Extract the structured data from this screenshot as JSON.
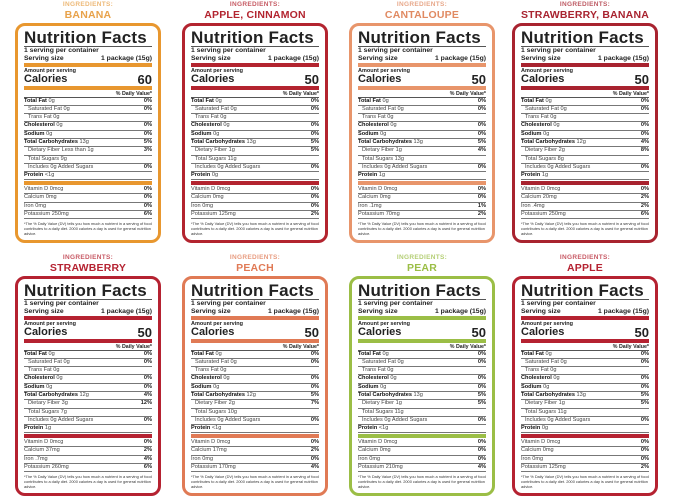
{
  "common": {
    "ingredients_label": "INGREDIENTS:",
    "title": "Nutrition Facts",
    "servings": "1 serving per container",
    "serving_size_label": "Serving size",
    "serving_size": "1 package (15g)",
    "amount_per_serving": "Amount per serving",
    "calories_label": "Calories",
    "dv_header": "% Daily Value*",
    "nutrient_names": [
      "Total Fat",
      "Saturated Fat",
      "Trans Fat",
      "Cholesterol",
      "Sodium",
      "Total Carbohydrates",
      "Dietary Fiber",
      "Total Sugars",
      "Includes 0g Added Sugars",
      "Protein"
    ],
    "vitamin_names": [
      "Vitamin D",
      "Calcium",
      "Iron",
      "Potassium"
    ],
    "footnote": "*The % Daily Value (DV) tells you how much a nutrient in a serving of food contributes to a daily diet. 2000 calories a day is used for general nutrition advice."
  },
  "panels": [
    {
      "ingredients": "BANANA",
      "color": "#E8972F",
      "label_color": "#E8A24A",
      "calories": "60",
      "amounts": [
        "0g",
        "0g",
        "0g",
        "0g",
        "0g",
        "13g",
        "Less than 1g",
        "9g",
        "",
        "<1g"
      ],
      "dvs": [
        "0%",
        "0%",
        "",
        "0%",
        "0%",
        "5%",
        "3%",
        "",
        "0%",
        ""
      ],
      "vit_amounts": [
        "0mcg",
        "0mg",
        "0mg",
        "250mg"
      ],
      "vit_dvs": [
        "0%",
        "0%",
        "0%",
        "6%"
      ]
    },
    {
      "ingredients": "APPLE, CINNAMON",
      "color": "#B3242F",
      "label_color": "#B3242F",
      "calories": "50",
      "amounts": [
        "0g",
        "0g",
        "0g",
        "0g",
        "0g",
        "13g",
        "1g",
        "11g",
        "",
        "0g"
      ],
      "dvs": [
        "0%",
        "0%",
        "",
        "0%",
        "0%",
        "5%",
        "5%",
        "",
        "0%",
        ""
      ],
      "vit_amounts": [
        "0mcg",
        "0mg",
        "0mg",
        "125mg"
      ],
      "vit_dvs": [
        "0%",
        "0%",
        "0%",
        "2%"
      ]
    },
    {
      "ingredients": "CANTALOUPE",
      "color": "#E8956B",
      "label_color": "#E08A62",
      "calories": "50",
      "amounts": [
        "0g",
        "0g",
        "0g",
        "0g",
        "0g",
        "13g",
        "1g",
        "13g",
        "",
        "1g"
      ],
      "dvs": [
        "0%",
        "0%",
        "",
        "0%",
        "0%",
        "5%",
        "4%",
        "",
        "0%",
        ""
      ],
      "vit_amounts": [
        "0mcg",
        "0mg",
        ".1mg",
        "70mg"
      ],
      "vit_dvs": [
        "0%",
        "0%",
        "1%",
        "2%"
      ]
    },
    {
      "ingredients": "STRAWBERRY, BANANA",
      "color": "#A8232F",
      "label_color": "#A8232F",
      "calories": "50",
      "amounts": [
        "0g",
        "0g",
        "0g",
        "0g",
        "0g",
        "12g",
        "2g",
        "8g",
        "",
        "1g"
      ],
      "dvs": [
        "0%",
        "0%",
        "",
        "0%",
        "0%",
        "4%",
        "8%",
        "",
        "0%",
        ""
      ],
      "vit_amounts": [
        "0mcg",
        "20mg",
        ".4mg",
        "250mg"
      ],
      "vit_dvs": [
        "0%",
        "2%",
        "2%",
        "6%"
      ]
    },
    {
      "ingredients": "STRAWBERRY",
      "color": "#B52231",
      "label_color": "#B52231",
      "calories": "50",
      "amounts": [
        "0g",
        "0g",
        "0g",
        "0g",
        "0g",
        "12g",
        "3g",
        "7g",
        "",
        "1g"
      ],
      "dvs": [
        "0%",
        "0%",
        "",
        "0%",
        "0%",
        "4%",
        "12%",
        "",
        "0%",
        ""
      ],
      "vit_amounts": [
        "0mcg",
        "37mg",
        ".7mg",
        "260mg"
      ],
      "vit_dvs": [
        "0%",
        "2%",
        "4%",
        "6%"
      ]
    },
    {
      "ingredients": "PEACH",
      "color": "#E07A55",
      "label_color": "#E07A55",
      "calories": "50",
      "amounts": [
        "0g",
        "0g",
        "0g",
        "0g",
        "0g",
        "12g",
        "2g",
        "10g",
        "",
        "<1g"
      ],
      "dvs": [
        "0%",
        "0%",
        "",
        "0%",
        "0%",
        "5%",
        "7%",
        "",
        "0%",
        ""
      ],
      "vit_amounts": [
        "0mcg",
        "17mg",
        "0mg",
        "170mg"
      ],
      "vit_dvs": [
        "0%",
        "2%",
        "0%",
        "4%"
      ]
    },
    {
      "ingredients": "PEAR",
      "color": "#9BBE46",
      "label_color": "#9BBE46",
      "calories": "50",
      "amounts": [
        "0g",
        "0g",
        "0g",
        "0g",
        "0g",
        "13g",
        "1g",
        "11g",
        "",
        "<1g"
      ],
      "dvs": [
        "0%",
        "0%",
        "",
        "0%",
        "0%",
        "5%",
        "5%",
        "",
        "0%",
        ""
      ],
      "vit_amounts": [
        "0mcg",
        "0mg",
        "0mg",
        "210mg"
      ],
      "vit_dvs": [
        "0%",
        "0%",
        "0%",
        "4%"
      ]
    },
    {
      "ingredients": "APPLE",
      "color": "#B52231",
      "label_color": "#B52231",
      "calories": "50",
      "amounts": [
        "0g",
        "0g",
        "0g",
        "0g",
        "0g",
        "13g",
        "1g",
        "11g",
        "",
        "0g"
      ],
      "dvs": [
        "0%",
        "0%",
        "",
        "0%",
        "0%",
        "5%",
        "5%",
        "",
        "0%",
        ""
      ],
      "vit_amounts": [
        "0mcg",
        "0mg",
        "0mg",
        "125mg"
      ],
      "vit_dvs": [
        "0%",
        "0%",
        "0%",
        "2%"
      ]
    }
  ]
}
